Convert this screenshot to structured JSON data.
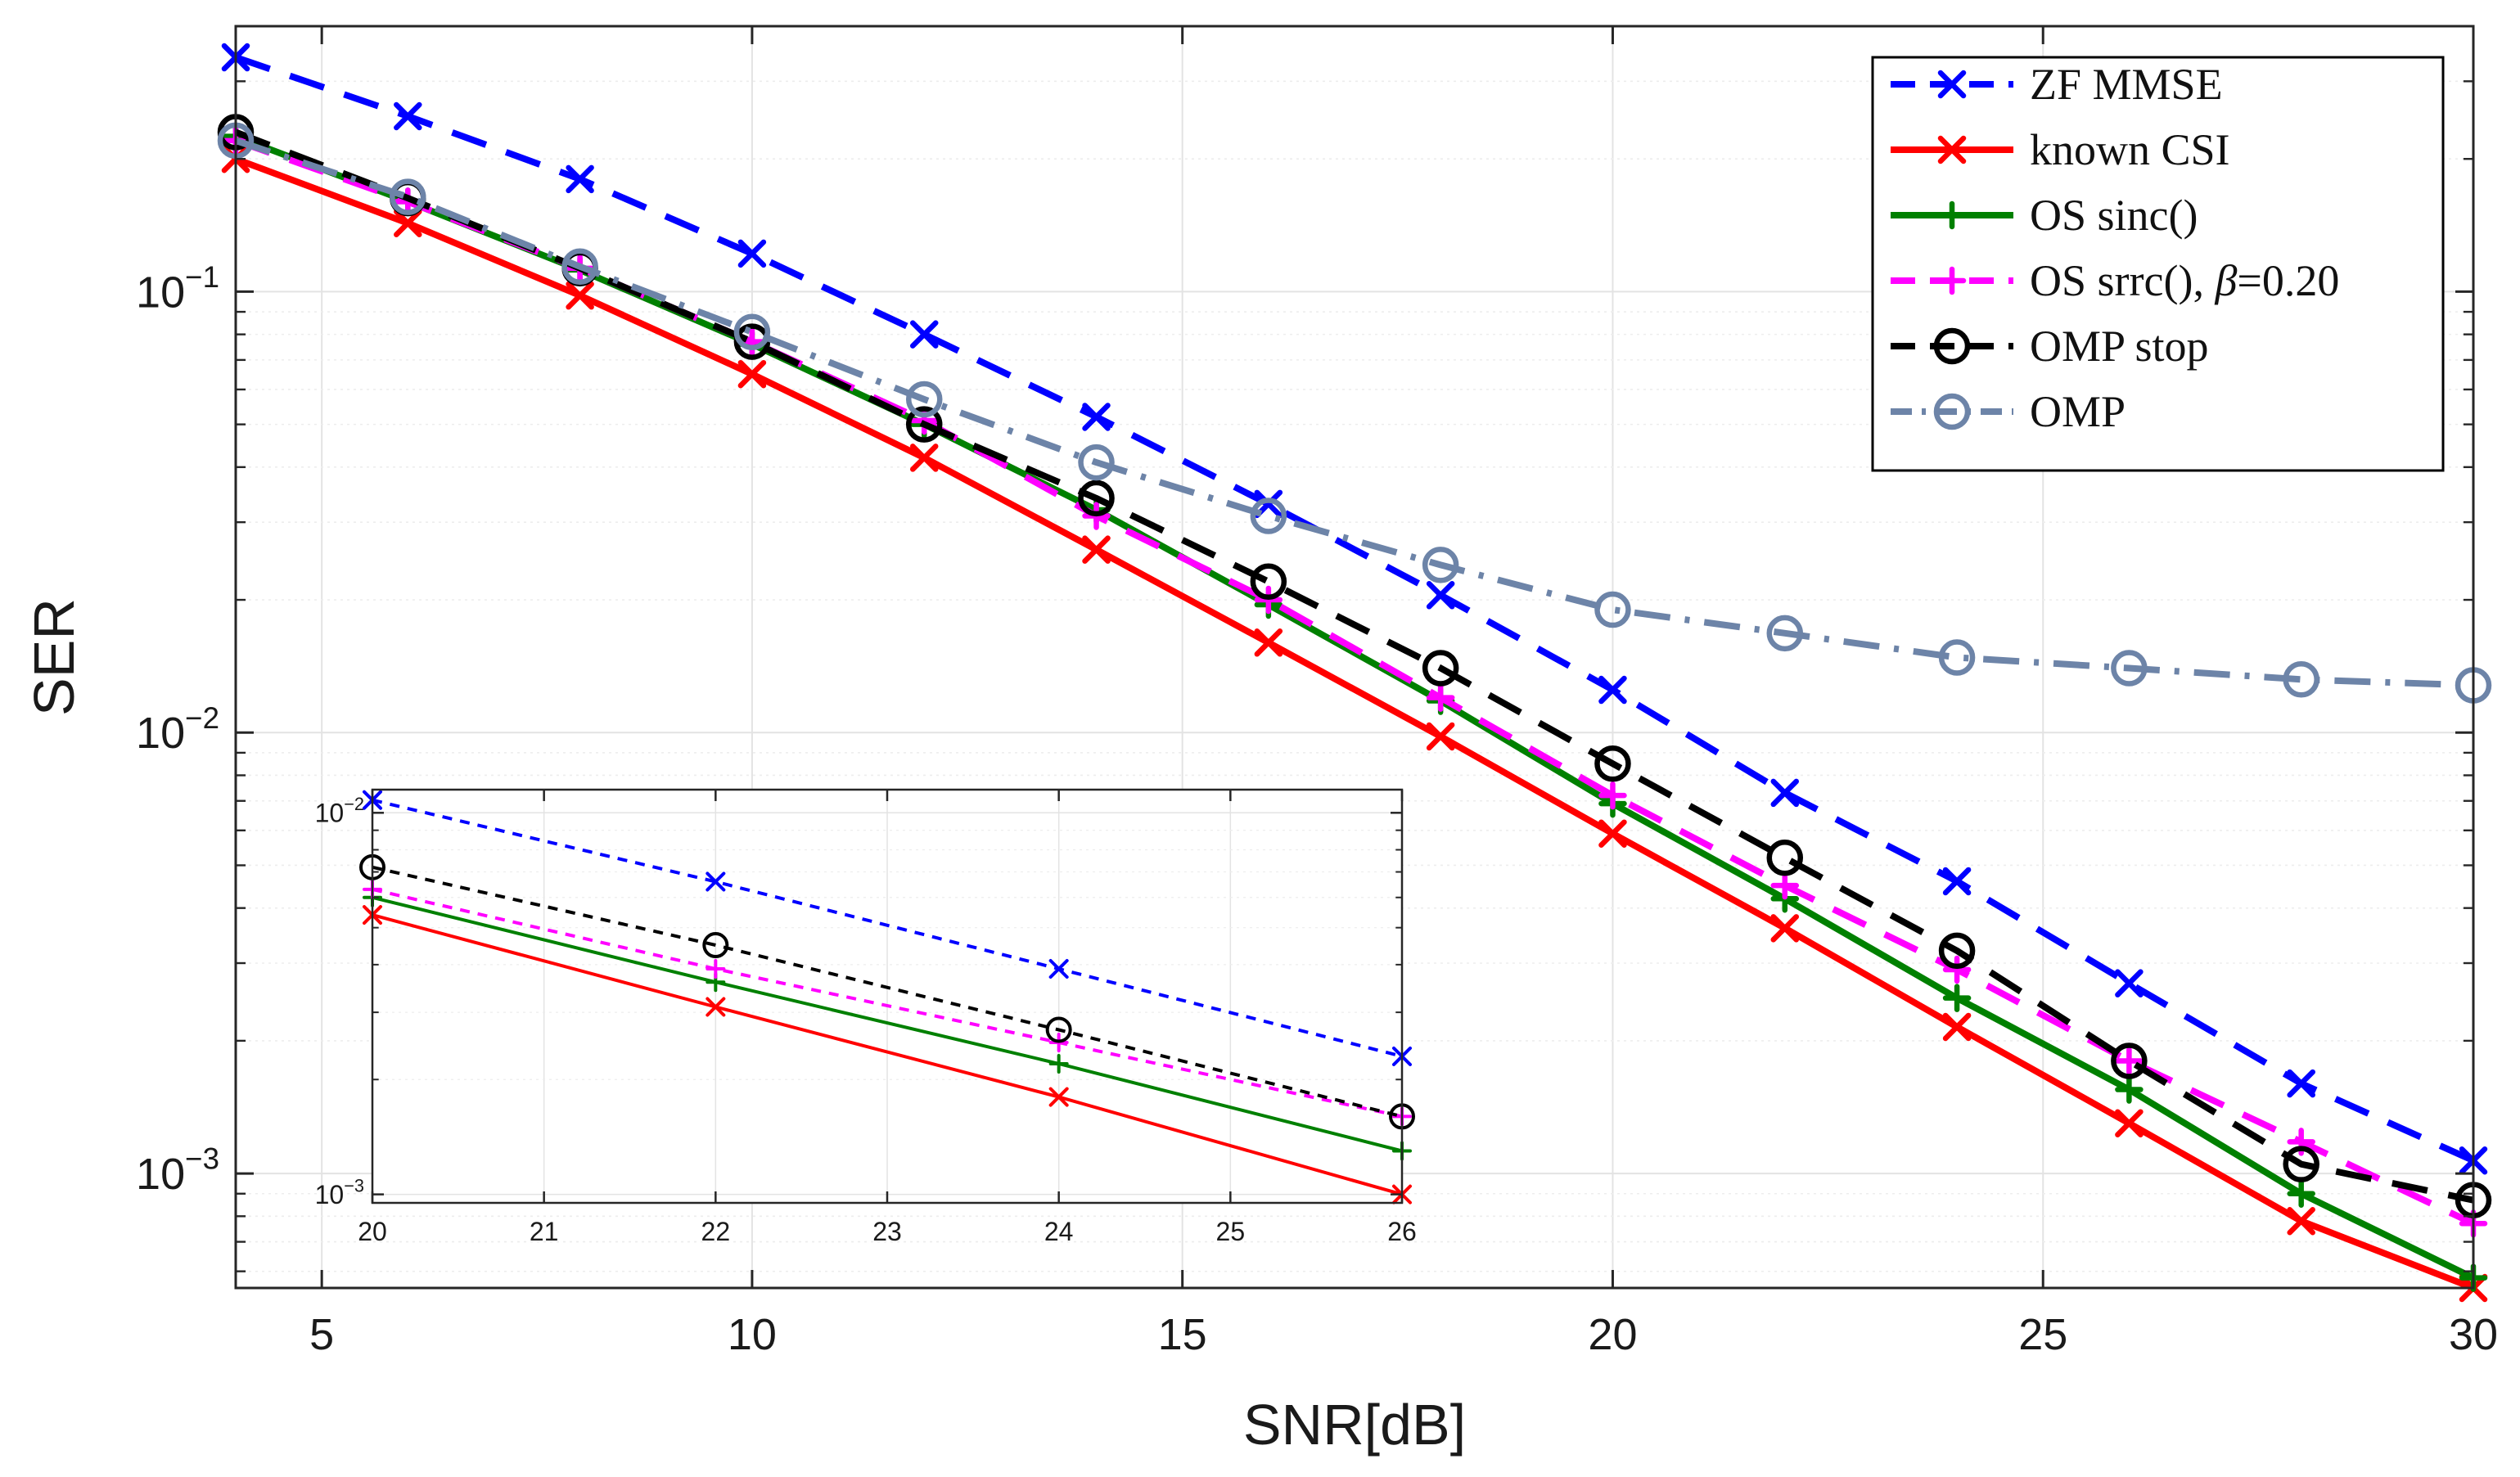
{
  "chart_data": [
    {
      "type": "line",
      "yscale": "log",
      "xlabel": "SNR[dB]",
      "ylabel": "SER",
      "xlim": [
        4,
        30
      ],
      "ylim": [
        0.00055,
        0.4
      ],
      "grid": true,
      "legend_position": "top-right",
      "x": [
        4,
        6,
        8,
        10,
        12,
        14,
        16,
        18,
        20,
        22,
        24,
        26,
        28,
        30
      ],
      "x_ticks": [
        {
          "value": 5,
          "label": "5"
        },
        {
          "value": 10,
          "label": "10"
        },
        {
          "value": 15,
          "label": "15"
        },
        {
          "value": 20,
          "label": "20"
        },
        {
          "value": 25,
          "label": "25"
        },
        {
          "value": 30,
          "label": "30"
        }
      ],
      "y_ticks": [
        {
          "value": 0.1,
          "base": "10",
          "exp": "−1"
        },
        {
          "value": 0.01,
          "base": "10",
          "exp": "−2"
        },
        {
          "value": 0.001,
          "base": "10",
          "exp": "−3"
        }
      ],
      "series": [
        {
          "name": "ZF MMSE",
          "legend": {
            "pre": "ZF MMSE"
          },
          "color": "#0000ff",
          "dash": "44 26",
          "marker": "x",
          "values": [
            0.34,
            0.25,
            0.18,
            0.122,
            0.08,
            0.052,
            0.033,
            0.0205,
            0.0125,
            0.0073,
            0.0046,
            0.0027,
            0.0016,
            0.00107
          ]
        },
        {
          "name": "known CSI",
          "legend": {
            "pre": "known CSI"
          },
          "color": "#ff0000",
          "dash": "",
          "marker": "x",
          "values": [
            0.2,
            0.143,
            0.098,
            0.065,
            0.042,
            0.026,
            0.016,
            0.0098,
            0.0059,
            0.0036,
            0.00215,
            0.0013,
            0.00078,
            0.00055
          ]
        },
        {
          "name": "OS sinc()",
          "legend": {
            "pre": "OS sinc()"
          },
          "color": "#008000",
          "dash": "",
          "marker": "plus",
          "values": [
            0.225,
            0.16,
            0.112,
            0.076,
            0.05,
            0.032,
            0.0195,
            0.0118,
            0.0069,
            0.0042,
            0.0025,
            0.00155,
            0.0009,
            0.00058
          ]
        },
        {
          "name": "OS srrc(), β=0.20",
          "legend": {
            "pre": "OS srrc(), ",
            "beta": "β",
            "post": "=0.20"
          },
          "color": "#ff00ff",
          "dash": "44 26",
          "marker": "plus",
          "values": [
            0.22,
            0.16,
            0.113,
            0.077,
            0.051,
            0.031,
            0.02,
            0.012,
            0.0072,
            0.0045,
            0.0029,
            0.0018,
            0.00118,
            0.00077
          ]
        },
        {
          "name": "OMP stop",
          "legend": {
            "pre": "OMP stop"
          },
          "color": "#000000",
          "dash": "44 26",
          "marker": "circle",
          "values": [
            0.23,
            0.163,
            0.113,
            0.077,
            0.05,
            0.034,
            0.022,
            0.014,
            0.0085,
            0.0052,
            0.0032,
            0.0018,
            0.00105,
            0.00087
          ]
        },
        {
          "name": "OMP",
          "legend": {
            "pre": "OMP"
          },
          "color": "#6d84a8",
          "dash": "44 18 6 18",
          "marker": "circle",
          "values": [
            0.22,
            0.164,
            0.114,
            0.081,
            0.057,
            0.041,
            0.031,
            0.024,
            0.019,
            0.0168,
            0.0148,
            0.014,
            0.0132,
            0.0128
          ]
        }
      ]
    },
    {
      "type": "line",
      "yscale": "log",
      "xlabel": "",
      "ylabel": "",
      "xlim": [
        20,
        26
      ],
      "ylim": [
        0.00095,
        0.0115
      ],
      "grid": true,
      "legend_position": "none",
      "x": [
        20,
        22,
        24,
        26
      ],
      "x_ticks": [
        {
          "value": 20,
          "label": "20"
        },
        {
          "value": 21,
          "label": "21"
        },
        {
          "value": 22,
          "label": "22"
        },
        {
          "value": 23,
          "label": "23"
        },
        {
          "value": 24,
          "label": "24"
        },
        {
          "value": 25,
          "label": "25"
        },
        {
          "value": 26,
          "label": "26"
        }
      ],
      "y_ticks": [
        {
          "value": 0.01,
          "base": "10",
          "exp": "−2"
        },
        {
          "value": 0.001,
          "base": "10",
          "exp": "−3"
        }
      ],
      "series": [
        {
          "name": "ZF MMSE",
          "color": "#0000ff",
          "dash": "12 10",
          "marker": "x",
          "values": [
            0.0108,
            0.0066,
            0.0039,
            0.0023
          ]
        },
        {
          "name": "known CSI",
          "color": "#ff0000",
          "dash": "",
          "marker": "x",
          "values": [
            0.0054,
            0.0031,
            0.0018,
            0.001
          ]
        },
        {
          "name": "OS sinc()",
          "color": "#008000",
          "dash": "",
          "marker": "plus",
          "values": [
            0.006,
            0.0036,
            0.0022,
            0.0013
          ]
        },
        {
          "name": "OS srrc(), β=0.20",
          "color": "#ff00ff",
          "dash": "12 10",
          "marker": "plus",
          "values": [
            0.0063,
            0.0039,
            0.0025,
            0.0016
          ]
        },
        {
          "name": "OMP stop",
          "color": "#000000",
          "dash": "12 10",
          "marker": "circle",
          "values": [
            0.0072,
            0.0045,
            0.0027,
            0.0016
          ]
        }
      ]
    }
  ]
}
